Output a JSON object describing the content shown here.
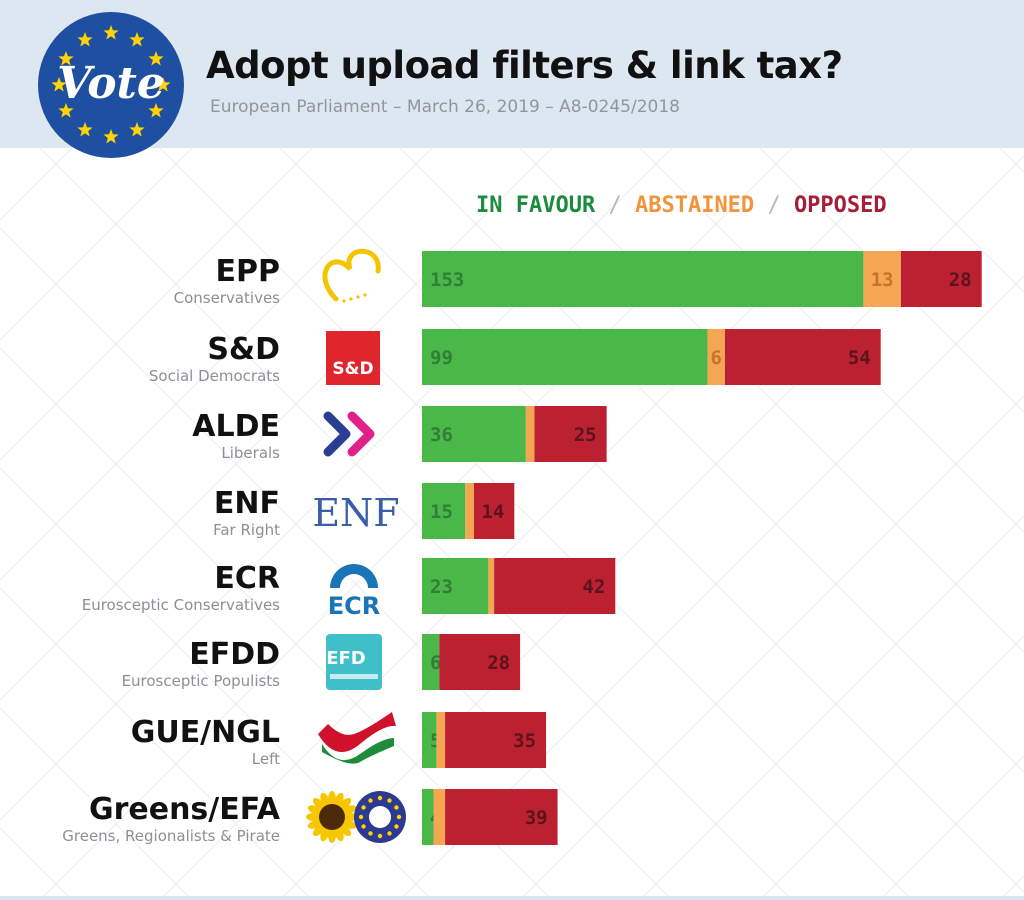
{
  "header": {
    "title": "Adopt upload filters & link tax?",
    "subtitle": "European Parliament – March 26, 2019 – A8-0245/2018",
    "logo_text": "Vote"
  },
  "legend": {
    "in_favour": "IN FAVOUR",
    "separator": "/",
    "abstained": "ABSTAINED",
    "opposed": "OPPOSED"
  },
  "colors": {
    "in_favour": "#4ab848",
    "abstained": "#f4a653",
    "opposed": "#bb2131",
    "in_favour_label": "#1c8b3b",
    "abstained_label": "#f0953b",
    "opposed_label": "#a51d36"
  },
  "chart_data": {
    "type": "bar",
    "orientation": "horizontal",
    "stacked": true,
    "categories": [
      "EPP",
      "S&D",
      "ALDE",
      "ENF",
      "ECR",
      "EFDD",
      "GUE/NGL",
      "Greens/EFA"
    ],
    "descriptions": [
      "Conservatives",
      "Social Democrats",
      "Liberals",
      "Far Right",
      "Eurosceptic Conservatives",
      "Eurosceptic Populists",
      "Left",
      "Greens, Regionalists & Pirate"
    ],
    "logos": [
      "epp-heart-logo",
      "sd-logo",
      "alde-chevrons-logo",
      "enf-logo",
      "ecr-logo",
      "efdd-logo",
      "gue-ngl-flag-logo",
      "greens-efa-logo"
    ],
    "logo_text": [
      "",
      "S&D",
      "",
      "ENF",
      "ECR",
      "EFD",
      "",
      ""
    ],
    "series": [
      {
        "name": "IN FAVOUR",
        "values": [
          153,
          99,
          36,
          15,
          23,
          6,
          5,
          4
        ],
        "show_labels": [
          true,
          true,
          true,
          true,
          true,
          true,
          true,
          true
        ]
      },
      {
        "name": "ABSTAINED",
        "values": [
          13,
          6,
          3,
          3,
          2,
          0,
          3,
          4
        ],
        "show_labels": [
          true,
          true,
          false,
          false,
          false,
          false,
          false,
          false
        ]
      },
      {
        "name": "OPPOSED",
        "values": [
          28,
          54,
          25,
          14,
          42,
          28,
          35,
          39
        ],
        "show_labels": [
          true,
          true,
          true,
          true,
          true,
          true,
          true,
          true
        ]
      }
    ]
  }
}
